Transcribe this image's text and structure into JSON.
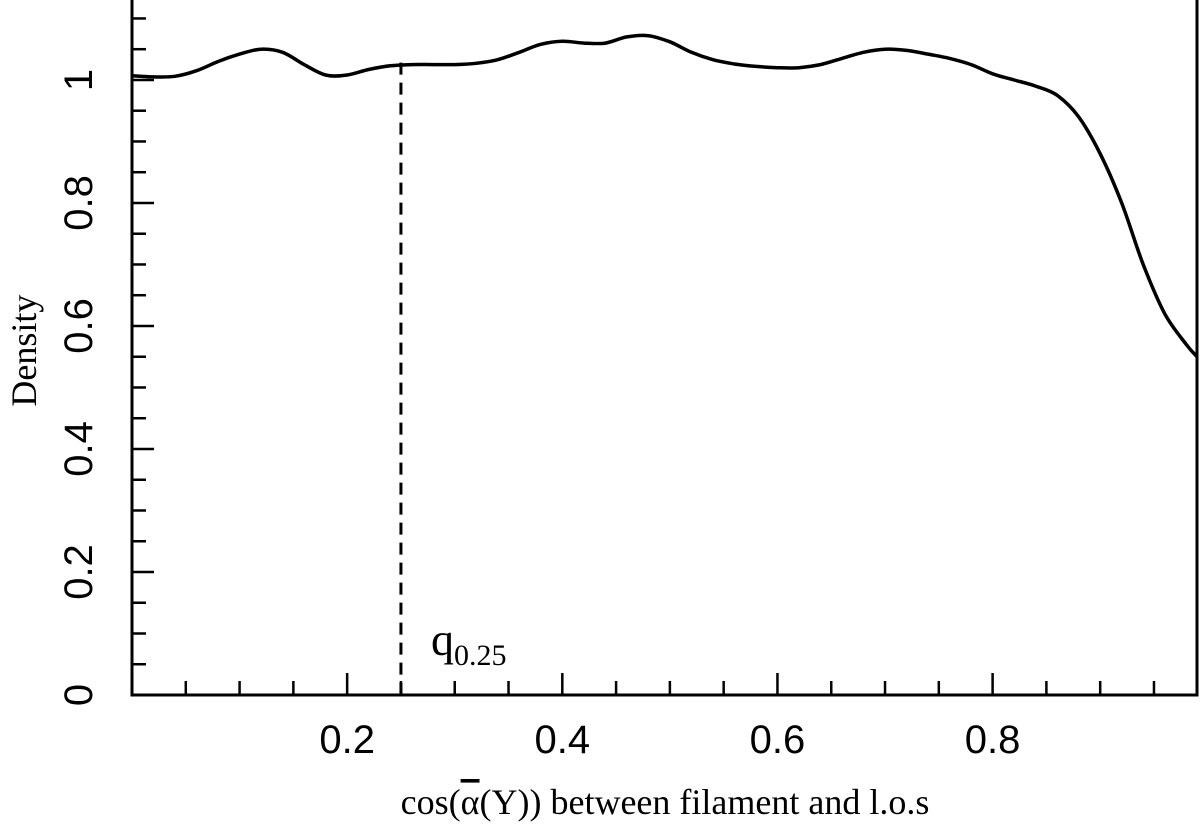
{
  "chart_data": {
    "type": "line",
    "title": "",
    "xlabel": "cos(α̅(Y)) between filament and l.o.s",
    "xlabel_parts": {
      "prefix": "cos(",
      "symbol": "α",
      "suffix": "(Y)) between filament and l.o.s"
    },
    "ylabel": "Density",
    "xlim": [
      0.0,
      0.99
    ],
    "ylim": [
      0,
      1.13
    ],
    "x_ticks": [
      0.2,
      0.4,
      0.6,
      0.8
    ],
    "x_tick_labels": [
      "0.2",
      "0.4",
      "0.6",
      "0.8"
    ],
    "y_ticks": [
      0,
      0.2,
      0.4,
      0.6,
      0.8,
      1
    ],
    "y_tick_labels": [
      "0",
      "0.2",
      "0.4",
      "0.6",
      "0.8",
      "1"
    ],
    "grid": false,
    "series": [
      {
        "x": [
          0.0,
          0.02,
          0.04,
          0.06,
          0.08,
          0.1,
          0.12,
          0.14,
          0.16,
          0.18,
          0.2,
          0.22,
          0.24,
          0.26,
          0.28,
          0.3,
          0.32,
          0.34,
          0.36,
          0.38,
          0.4,
          0.42,
          0.44,
          0.46,
          0.48,
          0.5,
          0.52,
          0.54,
          0.56,
          0.58,
          0.6,
          0.62,
          0.64,
          0.66,
          0.68,
          0.7,
          0.72,
          0.74,
          0.76,
          0.78,
          0.8,
          0.82,
          0.84,
          0.86,
          0.88,
          0.9,
          0.92,
          0.94,
          0.96,
          0.98,
          0.99
        ],
        "y": [
          1.007,
          1.005,
          1.006,
          1.015,
          1.03,
          1.042,
          1.05,
          1.045,
          1.025,
          1.008,
          1.008,
          1.017,
          1.023,
          1.025,
          1.025,
          1.025,
          1.027,
          1.033,
          1.045,
          1.058,
          1.063,
          1.06,
          1.06,
          1.07,
          1.072,
          1.062,
          1.045,
          1.033,
          1.026,
          1.022,
          1.02,
          1.02,
          1.025,
          1.035,
          1.045,
          1.05,
          1.048,
          1.042,
          1.035,
          1.025,
          1.01,
          1.0,
          0.99,
          0.975,
          0.94,
          0.88,
          0.8,
          0.7,
          0.62,
          0.57,
          0.55
        ]
      }
    ],
    "reference_lines": [
      {
        "orientation": "vertical",
        "x": 0.25,
        "style": "dashed"
      }
    ],
    "annotations": [
      {
        "main": "q",
        "sub": "0.25",
        "x": 0.25
      }
    ]
  }
}
